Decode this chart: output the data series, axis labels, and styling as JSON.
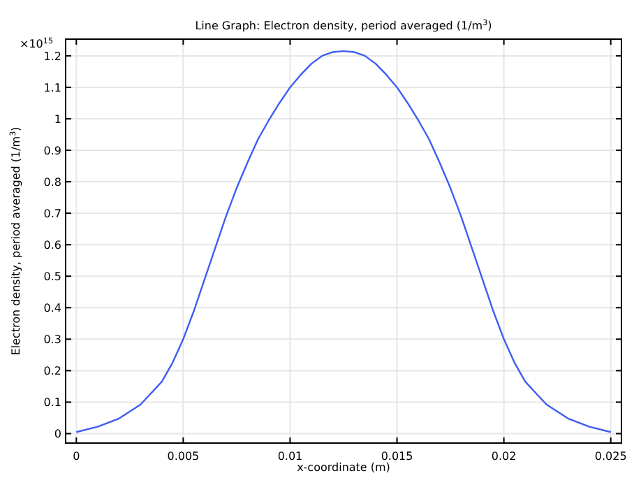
{
  "chart_data": {
    "type": "line",
    "title": "Line Graph: Electron density, period averaged (1/m$^{3}$)",
    "xlabel": "x-coordinate (m)",
    "ylabel": "Electron density, period averaged (1/m$^{3}$)",
    "annotations": [
      "×10$^{15}$"
    ],
    "x": [
      0,
      0.001,
      0.002,
      0.003,
      0.004,
      0.0045,
      0.005,
      0.0055,
      0.006,
      0.0065,
      0.007,
      0.0075,
      0.008,
      0.0085,
      0.009,
      0.0095,
      0.01,
      0.0105,
      0.011,
      0.0115,
      0.012,
      0.0125,
      0.013,
      0.0135,
      0.014,
      0.0145,
      0.015,
      0.0155,
      0.016,
      0.0165,
      0.017,
      0.0175,
      0.018,
      0.0185,
      0.019,
      0.0195,
      0.02,
      0.0205,
      0.021,
      0.022,
      0.023,
      0.024,
      0.025
    ],
    "series": [
      {
        "color": "#3f5cf5",
        "values": [
          0.005,
          0.022,
          0.048,
          0.092,
          0.165,
          0.225,
          0.3,
          0.39,
          0.49,
          0.59,
          0.69,
          0.78,
          0.86,
          0.935,
          0.995,
          1.05,
          1.1,
          1.14,
          1.175,
          1.2,
          1.212,
          1.215,
          1.212,
          1.2,
          1.175,
          1.14,
          1.1,
          1.05,
          0.995,
          0.935,
          0.86,
          0.78,
          0.69,
          0.59,
          0.49,
          0.39,
          0.3,
          0.225,
          0.165,
          0.092,
          0.048,
          0.022,
          0.005
        ]
      }
    ],
    "xlim": [
      -0.0005,
      0.0255
    ],
    "ylim": [
      -0.03,
      1.253
    ],
    "xticks": [
      0,
      0.005,
      0.01,
      0.015,
      0.02,
      0.025
    ],
    "yticks": [
      0,
      0.1,
      0.2,
      0.3,
      0.4,
      0.5,
      0.6,
      0.7,
      0.8,
      0.9,
      1,
      1.1,
      1.2
    ],
    "grid": true,
    "line_style": "solid",
    "marker": "none"
  }
}
